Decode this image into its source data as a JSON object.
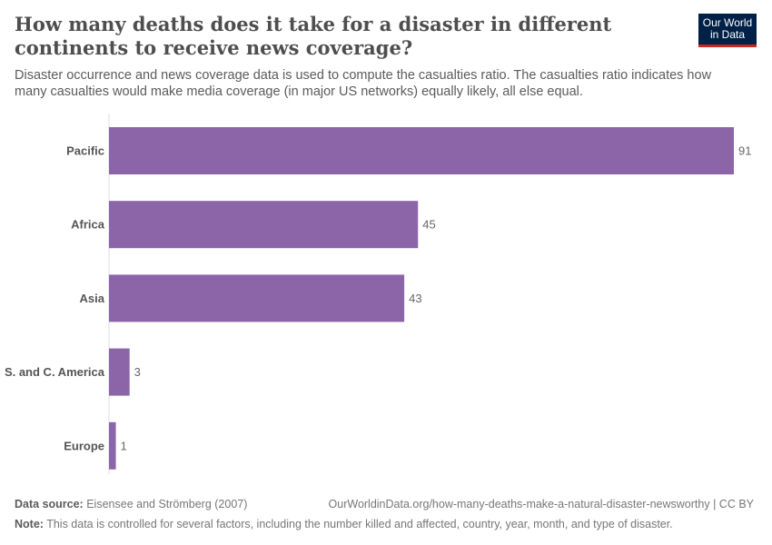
{
  "title": "How many deaths does it take for a disaster in different continents to receive news coverage?",
  "subtitle": "Disaster occurrence and news coverage data is used to compute the casualties ratio. The casualties ratio indicates how many casualties would make media coverage (in major US networks) equally likely, all else equal.",
  "logo": {
    "line1": "Our World",
    "line2": "in Data",
    "bg": "#002147",
    "accent": "#ce261e"
  },
  "chart_data": {
    "type": "bar",
    "orientation": "horizontal",
    "categories": [
      "Pacific",
      "Africa",
      "Asia",
      "S. and C. America",
      "Europe"
    ],
    "values": [
      91,
      45,
      43,
      3,
      1
    ],
    "data_labels": [
      "91",
      "45",
      "43",
      "3",
      "1"
    ],
    "color": "#8c65a8",
    "xlim": [
      0,
      91
    ],
    "grid": false
  },
  "footer": {
    "source_label": "Data source:",
    "source": "Eisensee and Strömberg (2007)",
    "url": "OurWorldinData.org/how-many-deaths-make-a-natural-disaster-newsworthy | CC BY",
    "note_label": "Note:",
    "note": "This data is controlled for several factors, including the number killed and affected, country, year, month, and type of disaster."
  }
}
